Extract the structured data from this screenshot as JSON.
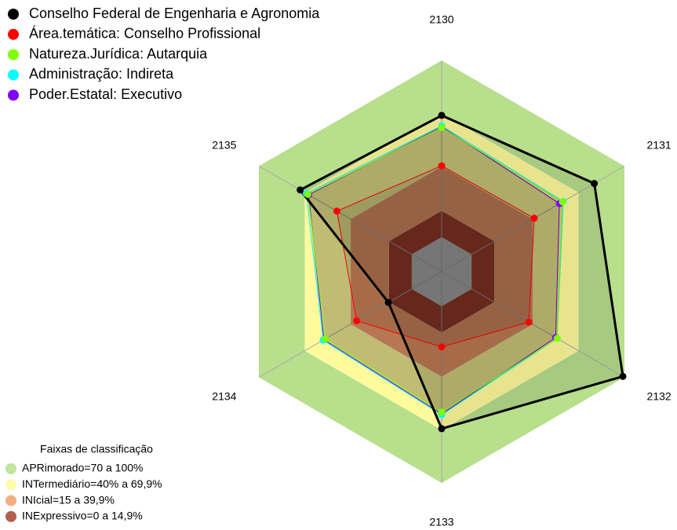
{
  "chart_data": {
    "type": "radar",
    "axes": [
      "2130",
      "2131",
      "2132",
      "2133",
      "2134",
      "2135"
    ],
    "rlim": [
      0,
      100
    ],
    "series": [
      {
        "name": "Conselho Federal de Engenharia e Agronomia",
        "color": "#000000",
        "values": [
          68.9,
          80.3,
          99,
          69.3,
          15.3,
          73
        ]
      },
      {
        "name": "Área.temática: Conselho Profissional",
        "color": "#ff0000",
        "values": [
          40.4,
          41,
          37.5,
          23,
          36,
          49
        ]
      },
      {
        "name": "Natureza.Jurídica: Autarquia",
        "color": "#80ff00",
        "values": [
          62,
          59.5,
          56,
          60,
          56.5,
          68
        ]
      },
      {
        "name": "Administração: Indireta",
        "color": "#00ffff",
        "values": [
          63,
          60,
          56,
          61.5,
          58,
          69
        ]
      },
      {
        "name": "Poder.Estatal: Executivo",
        "color": "#8000ff",
        "values": [
          62.5,
          57.5,
          55,
          61,
          57.5,
          67.5
        ]
      }
    ],
    "bands_title": "Faixas de classificação",
    "bands": [
      {
        "name": "APRimorado=70 a 100%",
        "from": 70,
        "to": 100,
        "color": "#b7df8c"
      },
      {
        "name": "INTermediário=40% a 69,9%",
        "from": 40,
        "to": 69.9,
        "color": "#fffb9c"
      },
      {
        "name": "INIcial=15 a 39,9%",
        "from": 15,
        "to": 39.9,
        "color": "#f4a070"
      },
      {
        "name": "INExpressivo=0 a 14,9%",
        "from": 0,
        "to": 14.9,
        "color": "#a8432f"
      }
    ]
  }
}
